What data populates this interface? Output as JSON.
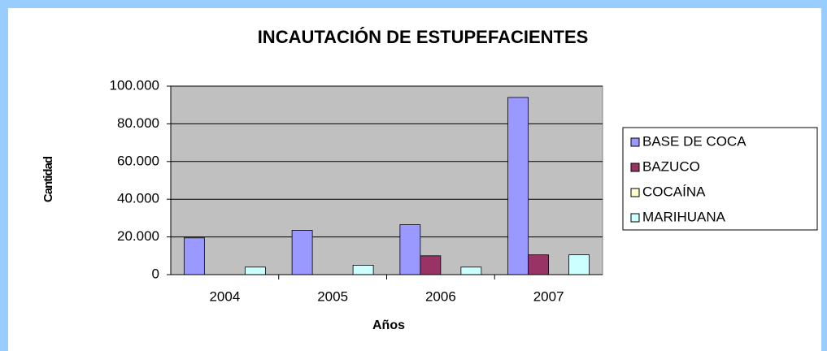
{
  "chart_data": {
    "type": "bar",
    "title": "INCAUTACIÓN DE ESTUPEFACIENTES",
    "x_label": "Años",
    "y_label": "Cantidad",
    "categories": [
      "2004",
      "2005",
      "2006",
      "2007"
    ],
    "series": [
      {
        "name": "BASE DE COCA",
        "color": "#9999ff",
        "values": [
          19500,
          23500,
          26500,
          94000
        ]
      },
      {
        "name": "BAZUCO",
        "color": "#993366",
        "values": [
          0,
          0,
          10000,
          10500
        ]
      },
      {
        "name": "COCAÍNA",
        "color": "#ffffcc",
        "values": [
          0,
          0,
          0,
          0
        ]
      },
      {
        "name": "MARIHUANA",
        "color": "#ccffff",
        "values": [
          4000,
          5000,
          4000,
          10500
        ]
      }
    ],
    "ylim": [
      0,
      100000
    ],
    "yticks": [
      0,
      {
        "value": 20000,
        "label": "20.000"
      },
      {
        "value": 40000,
        "label": "40.000"
      },
      {
        "value": 60000,
        "label": "60.000"
      },
      {
        "value": 80000,
        "label": "80.000"
      },
      {
        "value": 100000,
        "label": "100.000"
      }
    ],
    "grid": true,
    "legend": "right"
  }
}
